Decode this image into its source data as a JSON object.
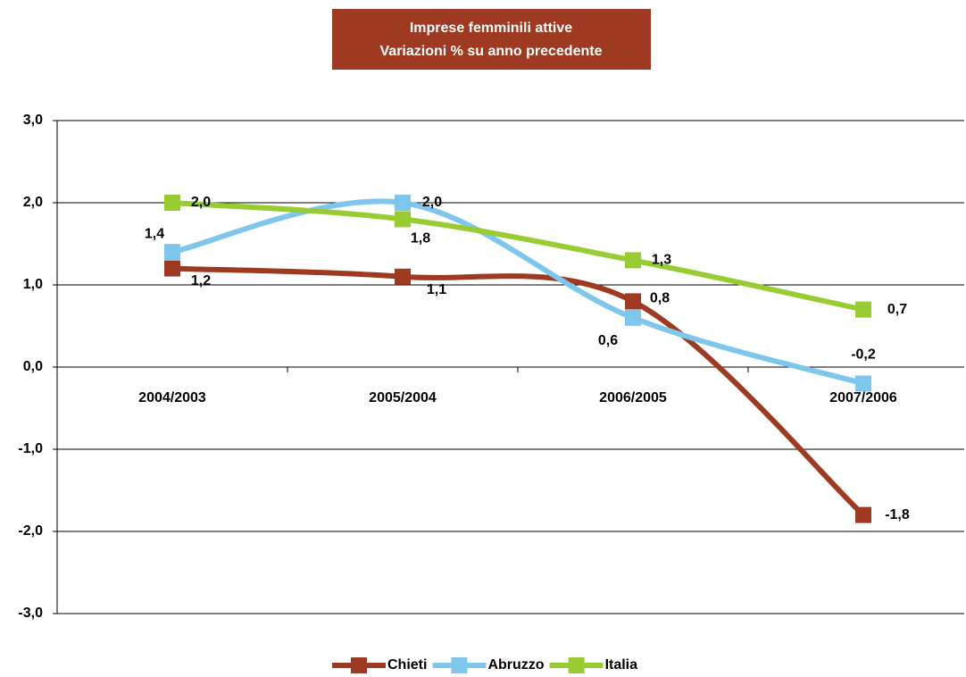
{
  "chart_data": {
    "type": "line",
    "title": "Imprese femminili attive",
    "subtitle": "Variazioni % su anno precedente",
    "categories": [
      "2004/2003",
      "2005/2004",
      "2006/2005",
      "2007/2006"
    ],
    "series": [
      {
        "name": "Chieti",
        "color": "#9e3a22",
        "values": [
          1.2,
          1.1,
          0.8,
          -1.8
        ],
        "value_labels": [
          "1,2",
          "1,1",
          "0,8",
          "-1,8"
        ]
      },
      {
        "name": "Abruzzo",
        "color": "#7ec6ec",
        "values": [
          1.4,
          2.0,
          0.6,
          -0.2
        ],
        "value_labels": [
          "1,4",
          "2,0",
          "0,6",
          "-0,2"
        ]
      },
      {
        "name": "Italia",
        "color": "#99cc33",
        "values": [
          2.0,
          1.8,
          1.3,
          0.7
        ],
        "value_labels": [
          "2,0",
          "1,8",
          "1,3",
          "0,7"
        ]
      }
    ],
    "ylim": [
      -3,
      3
    ],
    "yticks": [
      {
        "value": -3,
        "label": "-3,0"
      },
      {
        "value": -2,
        "label": "-2,0"
      },
      {
        "value": -1,
        "label": "-1,0"
      },
      {
        "value": 0,
        "label": "0,0"
      },
      {
        "value": 1,
        "label": "1,0"
      },
      {
        "value": 2,
        "label": "2,0"
      },
      {
        "value": 3,
        "label": "3,0"
      }
    ],
    "grid": true,
    "legend": "bottom"
  }
}
